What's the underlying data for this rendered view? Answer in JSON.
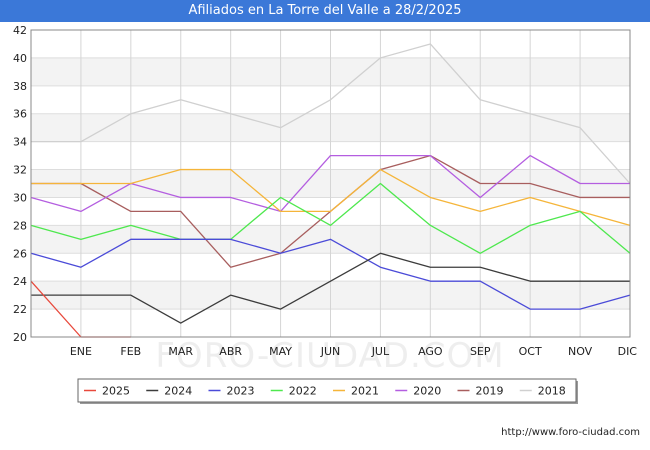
{
  "title": "Afiliados en La Torre del Valle a 28/2/2025",
  "source_url": "http://www.foro-ciudad.com",
  "watermark": "FORO-CIUDAD.COM",
  "chart_data": {
    "type": "line",
    "title": "Afiliados en La Torre del Valle a 28/2/2025",
    "xlabel": "",
    "ylabel": "",
    "categories": [
      "",
      "ENE",
      "FEB",
      "MAR",
      "ABR",
      "MAY",
      "JUN",
      "JUL",
      "AGO",
      "SEP",
      "OCT",
      "NOV",
      "DIC"
    ],
    "ylim": [
      20,
      42
    ],
    "yticks": [
      20,
      22,
      24,
      26,
      28,
      30,
      32,
      34,
      36,
      38,
      40,
      42
    ],
    "grid": true,
    "legend_position": "bottom",
    "series": [
      {
        "name": "2025",
        "color": "#e8493c",
        "values": [
          24,
          20,
          20,
          null,
          null,
          null,
          null,
          null,
          null,
          null,
          null,
          null,
          null
        ]
      },
      {
        "name": "2024",
        "color": "#3c3c3c",
        "values": [
          23,
          23,
          23,
          21,
          23,
          22,
          24,
          26,
          25,
          25,
          24,
          24,
          24
        ]
      },
      {
        "name": "2023",
        "color": "#4b4bd8",
        "values": [
          26,
          25,
          27,
          27,
          27,
          26,
          27,
          25,
          24,
          24,
          22,
          22,
          23
        ]
      },
      {
        "name": "2022",
        "color": "#4ee84e",
        "values": [
          28,
          27,
          28,
          27,
          27,
          30,
          28,
          31,
          28,
          26,
          28,
          29,
          26
        ]
      },
      {
        "name": "2021",
        "color": "#f5b53a",
        "values": [
          31,
          31,
          31,
          32,
          32,
          29,
          29,
          32,
          30,
          29,
          30,
          29,
          28
        ]
      },
      {
        "name": "2020",
        "color": "#b45ee0",
        "values": [
          30,
          29,
          31,
          30,
          30,
          29,
          33,
          33,
          33,
          30,
          33,
          31,
          31
        ]
      },
      {
        "name": "2019",
        "color": "#a85e5e",
        "values": [
          31,
          31,
          29,
          29,
          25,
          26,
          29,
          32,
          33,
          31,
          31,
          30,
          30
        ]
      },
      {
        "name": "2018",
        "color": "#d0d0d0",
        "values": [
          34,
          34,
          36,
          37,
          36,
          35,
          37,
          40,
          41,
          37,
          36,
          35,
          31
        ]
      }
    ]
  }
}
